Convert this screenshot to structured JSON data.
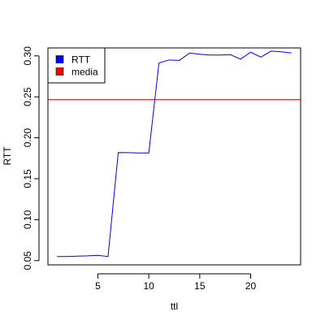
{
  "chart_data": {
    "type": "line",
    "xlabel": "ttl",
    "ylabel": "RTT",
    "xlim": [
      0.1,
      24.9
    ],
    "ylim": [
      0.0448,
      0.3097
    ],
    "x_ticks": [
      5,
      10,
      15,
      20
    ],
    "y_ticks": [
      0.05,
      0.1,
      0.15,
      0.2,
      0.25,
      0.3
    ],
    "y_tick_labels": [
      "0.05",
      "0.10",
      "0.15",
      "0.20",
      "0.25",
      "0.30"
    ],
    "series": [
      {
        "name": "RTT",
        "color": "#0000ff",
        "x": [
          1,
          2,
          3,
          4,
          5,
          6,
          7,
          8,
          9,
          10,
          11,
          12,
          13,
          14,
          15,
          16,
          17,
          18,
          19,
          20,
          21,
          22,
          23,
          24
        ],
        "values": [
          0.055,
          0.055,
          0.0555,
          0.0558,
          0.0565,
          0.055,
          0.182,
          0.1818,
          0.1815,
          0.1815,
          0.2915,
          0.295,
          0.2945,
          0.3035,
          0.302,
          0.301,
          0.301,
          0.3015,
          0.296,
          0.3045,
          0.2985,
          0.3058,
          0.305,
          0.3035
        ]
      },
      {
        "name": "media",
        "color": "#ff0000",
        "type": "hline",
        "value": 0.2466
      }
    ],
    "legend": {
      "position": "top-left",
      "entries": [
        {
          "label": "RTT",
          "color": "#0000ff"
        },
        {
          "label": "media",
          "color": "#ff0000"
        }
      ]
    }
  }
}
